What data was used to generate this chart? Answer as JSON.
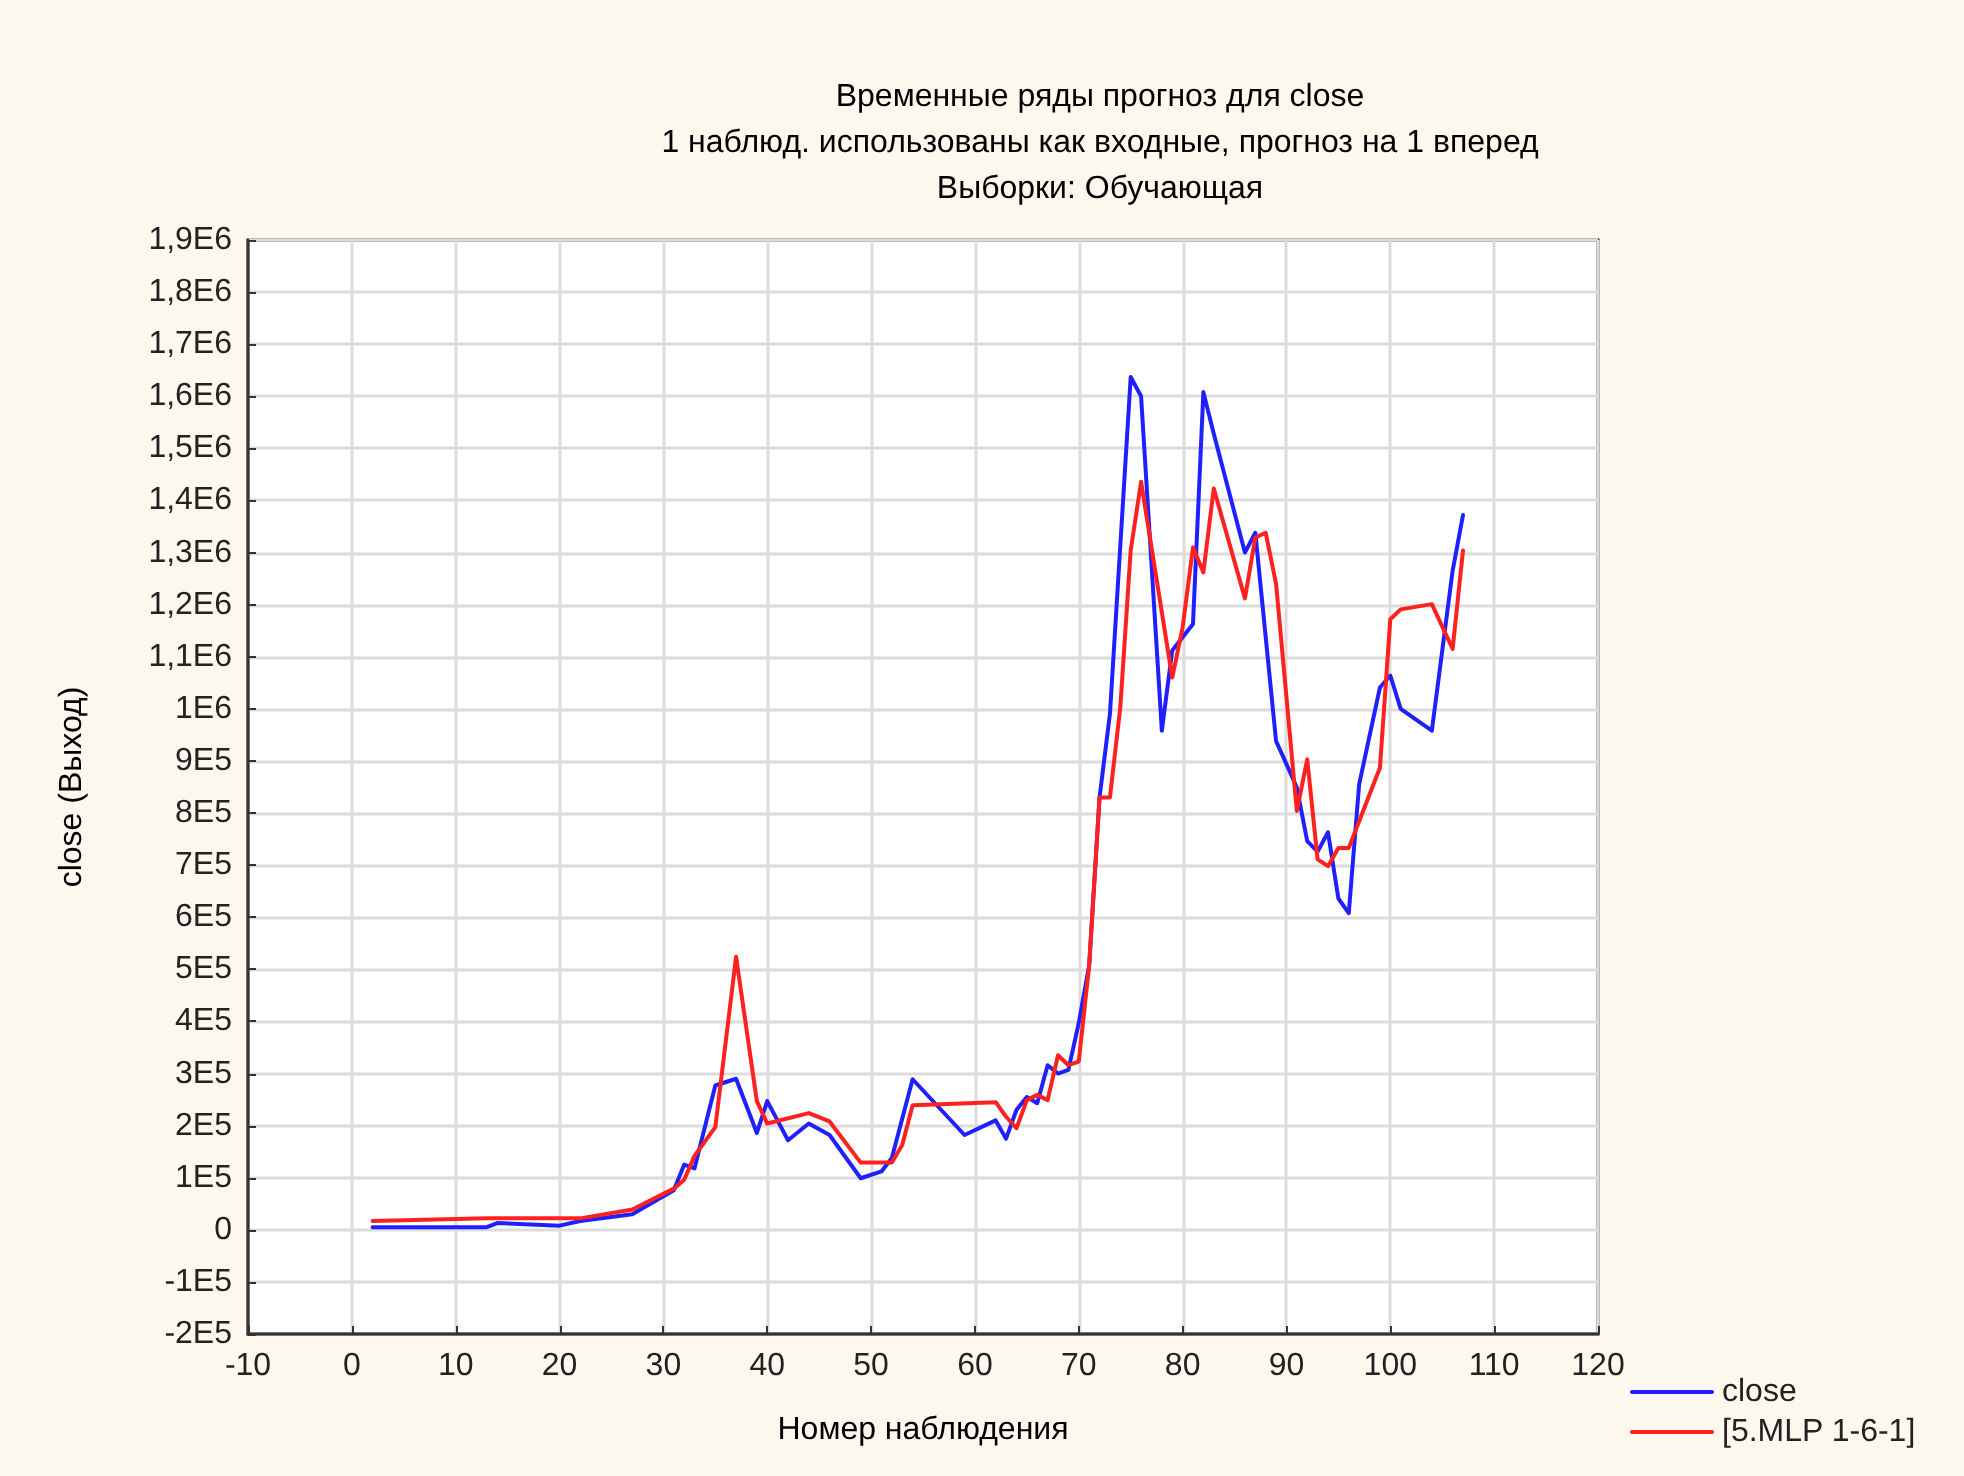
{
  "chart_data": {
    "type": "line",
    "title": "Временные ряды прогноз для close",
    "subtitle": "1 наблюд. использованы как входные, прогноз на 1 вперед\nВыборки: Обучающая",
    "xlabel": "Номер наблюдения",
    "ylabel": "close (Выход)",
    "xlim": [
      -10,
      120
    ],
    "xticks": [
      -10,
      0,
      10,
      20,
      30,
      40,
      50,
      60,
      70,
      80,
      90,
      100,
      110,
      120
    ],
    "ylim": [
      -200000,
      1900000
    ],
    "yticks": [
      {
        "value": -200000,
        "label": "-2E5"
      },
      {
        "value": -100000,
        "label": "-1E5"
      },
      0,
      {
        "value": 100000,
        "label": "1E5"
      },
      {
        "value": 200000,
        "label": "2E5"
      },
      {
        "value": 300000,
        "label": "3E5"
      },
      {
        "value": 400000,
        "label": "4E5"
      },
      {
        "value": 500000,
        "label": "5E5"
      },
      {
        "value": 600000,
        "label": "6E5"
      },
      {
        "value": 700000,
        "label": "7E5"
      },
      {
        "value": 800000,
        "label": "8E5"
      },
      {
        "value": 900000,
        "label": "9E5"
      },
      {
        "value": 1000000,
        "label": "1E6"
      },
      {
        "value": 1100000,
        "label": "1,1E6"
      },
      {
        "value": 1200000,
        "label": "1,2E6"
      },
      {
        "value": 1300000,
        "label": "1,3E6"
      },
      {
        "value": 1400000,
        "label": "1,4E6"
      },
      {
        "value": 1500000,
        "label": "1,5E6"
      },
      {
        "value": 1600000,
        "label": "1,6E6"
      },
      {
        "value": 1700000,
        "label": "1,7E6"
      },
      {
        "value": 1800000,
        "label": "1,8E6"
      },
      {
        "value": 1900000,
        "label": "1,9E6"
      }
    ],
    "grid": true,
    "legend": "bottom right",
    "marker": "none",
    "line_style": "solid",
    "series": [
      {
        "name": "close",
        "color": "#2020ff",
        "x": [
          2,
          13,
          14,
          20,
          22,
          27,
          31,
          32,
          33,
          35,
          37,
          39,
          40,
          42,
          44,
          46,
          49,
          51,
          52,
          54,
          59,
          62,
          63,
          64,
          65,
          66,
          67,
          68,
          69,
          70,
          71,
          72,
          73,
          75,
          76,
          78,
          79,
          81,
          82,
          83,
          86,
          87,
          89,
          90,
          91,
          92,
          93,
          94,
          95,
          96,
          97,
          99,
          100,
          101,
          104,
          106,
          107
        ],
        "values": [
          5000,
          5000,
          13000,
          8000,
          17000,
          30000,
          76000,
          125000,
          118000,
          277000,
          290000,
          186000,
          247000,
          172000,
          204000,
          182000,
          99000,
          112000,
          138000,
          289000,
          182000,
          210000,
          175000,
          230000,
          255000,
          243000,
          316000,
          300000,
          307000,
          397000,
          507000,
          830000,
          990000,
          1637000,
          1600000,
          958000,
          1112000,
          1163000,
          1608000,
          1528000,
          1300000,
          1338000,
          938000,
          894000,
          849000,
          746000,
          726000,
          763000,
          636000,
          608000,
          855000,
          1041000,
          1064000,
          1000000,
          958000,
          1265000,
          1372000
        ]
      },
      {
        "name": "[5.MLP 1-6-1]",
        "color": "#ff2020",
        "x": [
          2,
          13,
          22,
          27,
          31,
          32,
          33,
          35,
          37,
          39,
          40,
          44,
          46,
          49,
          52,
          53,
          54,
          62,
          63,
          64,
          65,
          66,
          67,
          68,
          69,
          70,
          71,
          72,
          73,
          74,
          75,
          76,
          79,
          80,
          81,
          82,
          83,
          86,
          87,
          88,
          89,
          91,
          92,
          93,
          94,
          95,
          96,
          99,
          100,
          101,
          104,
          106,
          107
        ],
        "values": [
          17000,
          22000,
          22000,
          39000,
          79000,
          96000,
          142000,
          197000,
          524000,
          247000,
          204000,
          224000,
          208000,
          129000,
          129000,
          163000,
          239000,
          245000,
          217000,
          195000,
          249000,
          259000,
          249000,
          335000,
          316000,
          323000,
          507000,
          830000,
          830000,
          1003000,
          1304000,
          1436000,
          1060000,
          1156000,
          1310000,
          1262000,
          1423000,
          1212000,
          1329000,
          1338000,
          1240000,
          804000,
          903000,
          711000,
          698000,
          733000,
          733000,
          887000,
          1172000,
          1191000,
          1201000,
          1115000,
          1304000
        ]
      }
    ]
  }
}
